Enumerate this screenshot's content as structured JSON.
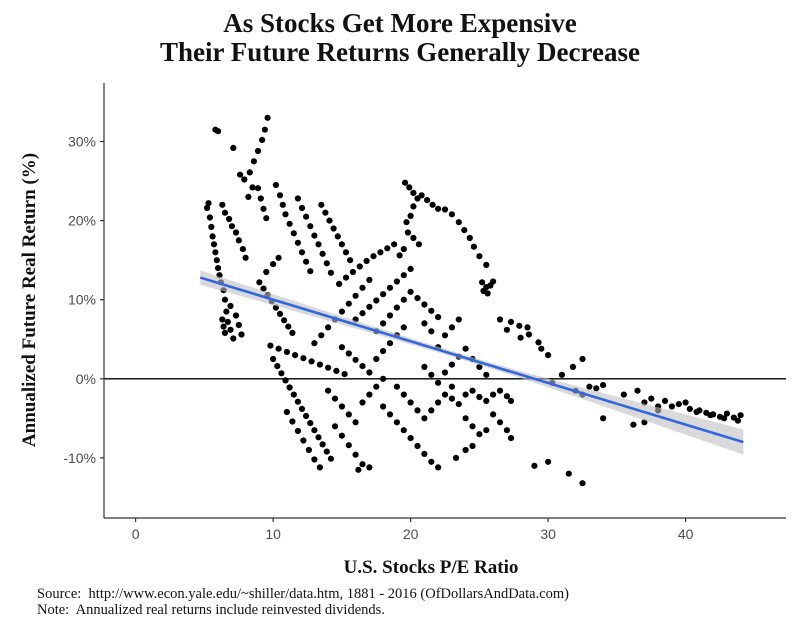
{
  "chart_data": {
    "type": "scatter",
    "title": [
      "As Stocks Get More Expensive",
      "Their Future Returns Generally Decrease"
    ],
    "xlabel": "U.S. Stocks P/E Ratio",
    "ylabel": "Annualized Future Real Return (%)",
    "xlim": [
      -2.3,
      47.3
    ],
    "ylim": [
      -17.6,
      37.4
    ],
    "x_ticks": [
      0,
      10,
      20,
      30,
      40
    ],
    "x_tick_labels": [
      "0",
      "10",
      "20",
      "30",
      "40"
    ],
    "y_ticks": [
      -10,
      0,
      10,
      20,
      30
    ],
    "y_tick_labels": [
      "-10%",
      "0%",
      "10%",
      "20%",
      "30%"
    ],
    "grid": false,
    "reference_line": {
      "y": 0,
      "color": "#000000"
    },
    "point_color": "#000000",
    "trend": {
      "type": "linear",
      "color": "#3366dd",
      "band_color": "#bfbfbf",
      "x": [
        4.7,
        44.2
      ],
      "y": [
        12.8,
        -8.0
      ],
      "band_halfwidth_at_ends": [
        0.9,
        1.6
      ],
      "band_halfwidth_at_center": 0.35
    },
    "points": [
      [
        5.2,
        21.6
      ],
      [
        5.4,
        20.4
      ],
      [
        5.5,
        19.2
      ],
      [
        5.6,
        18.0
      ],
      [
        5.7,
        17.0
      ],
      [
        5.3,
        22.2
      ],
      [
        5.8,
        16.0
      ],
      [
        5.9,
        15.0
      ],
      [
        6.0,
        14.0
      ],
      [
        6.1,
        13.1
      ],
      [
        6.2,
        12.2
      ],
      [
        6.4,
        11.2
      ],
      [
        6.5,
        10.0
      ],
      [
        5.8,
        31.5
      ],
      [
        6.0,
        31.3
      ],
      [
        6.3,
        22.0
      ],
      [
        6.5,
        21.0
      ],
      [
        6.8,
        20.2
      ],
      [
        7.0,
        19.3
      ],
      [
        7.3,
        18.5
      ],
      [
        7.5,
        17.5
      ],
      [
        7.8,
        16.4
      ],
      [
        8.0,
        15.3
      ],
      [
        8.3,
        26.1
      ],
      [
        8.6,
        27.5
      ],
      [
        8.9,
        28.8
      ],
      [
        9.2,
        30.2
      ],
      [
        9.4,
        31.5
      ],
      [
        9.6,
        33.0
      ],
      [
        8.9,
        24.1
      ],
      [
        9.1,
        22.8
      ],
      [
        9.3,
        21.5
      ],
      [
        9.5,
        20.3
      ],
      [
        8.5,
        24.2
      ],
      [
        8.2,
        23.0
      ],
      [
        7.1,
        29.2
      ],
      [
        7.6,
        25.8
      ],
      [
        7.9,
        25.2
      ],
      [
        6.3,
        7.5
      ],
      [
        6.4,
        6.6
      ],
      [
        6.5,
        5.8
      ],
      [
        6.7,
        7.2
      ],
      [
        6.9,
        6.2
      ],
      [
        7.1,
        5.1
      ],
      [
        6.6,
        8.5
      ],
      [
        6.9,
        9.2
      ],
      [
        7.3,
        8.0
      ],
      [
        7.5,
        6.8
      ],
      [
        7.7,
        5.6
      ],
      [
        9.0,
        12.2
      ],
      [
        9.3,
        11.4
      ],
      [
        9.6,
        10.6
      ],
      [
        9.9,
        9.8
      ],
      [
        10.2,
        9.0
      ],
      [
        10.5,
        8.2
      ],
      [
        10.8,
        7.4
      ],
      [
        11.1,
        6.6
      ],
      [
        11.4,
        5.8
      ],
      [
        9.5,
        13.5
      ],
      [
        10.0,
        14.5
      ],
      [
        10.4,
        15.3
      ],
      [
        10.2,
        24.5
      ],
      [
        10.5,
        23.2
      ],
      [
        10.7,
        22.0
      ],
      [
        10.9,
        20.8
      ],
      [
        11.2,
        19.6
      ],
      [
        11.5,
        18.4
      ],
      [
        11.8,
        17.2
      ],
      [
        12.1,
        16.0
      ],
      [
        12.4,
        14.8
      ],
      [
        12.7,
        13.6
      ],
      [
        11.8,
        22.8
      ],
      [
        12.1,
        21.6
      ],
      [
        12.4,
        20.5
      ],
      [
        12.7,
        19.3
      ],
      [
        13.0,
        18.1
      ],
      [
        13.3,
        17.0
      ],
      [
        13.6,
        15.8
      ],
      [
        13.9,
        14.6
      ],
      [
        14.2,
        13.4
      ],
      [
        13.5,
        22.0
      ],
      [
        13.8,
        21.0
      ],
      [
        14.1,
        20.0
      ],
      [
        14.4,
        19.0
      ],
      [
        14.7,
        18.0
      ],
      [
        15.0,
        17.0
      ],
      [
        15.3,
        16.0
      ],
      [
        15.6,
        15.0
      ],
      [
        10.0,
        2.5
      ],
      [
        10.3,
        1.6
      ],
      [
        10.6,
        0.7
      ],
      [
        10.9,
        -0.2
      ],
      [
        11.2,
        -1.1
      ],
      [
        11.5,
        -2.0
      ],
      [
        11.8,
        -2.9
      ],
      [
        12.1,
        -3.8
      ],
      [
        12.4,
        -4.7
      ],
      [
        12.7,
        -5.6
      ],
      [
        13.0,
        -6.5
      ],
      [
        13.3,
        -7.4
      ],
      [
        13.6,
        -8.3
      ],
      [
        13.9,
        -9.2
      ],
      [
        14.2,
        -10.1
      ],
      [
        9.8,
        4.2
      ],
      [
        10.4,
        3.8
      ],
      [
        11.0,
        3.4
      ],
      [
        11.6,
        3.0
      ],
      [
        12.2,
        2.6
      ],
      [
        12.8,
        2.2
      ],
      [
        13.4,
        1.8
      ],
      [
        14.0,
        1.4
      ],
      [
        14.6,
        1.0
      ],
      [
        15.2,
        0.6
      ],
      [
        11.0,
        -4.2
      ],
      [
        11.4,
        -5.4
      ],
      [
        11.8,
        -6.6
      ],
      [
        12.2,
        -7.8
      ],
      [
        12.6,
        -9.0
      ],
      [
        13.0,
        -10.2
      ],
      [
        13.4,
        -11.2
      ],
      [
        14.5,
        -6.0
      ],
      [
        15.0,
        -7.2
      ],
      [
        15.5,
        -8.4
      ],
      [
        16.0,
        -9.6
      ],
      [
        16.5,
        -10.8
      ],
      [
        17.0,
        -11.2
      ],
      [
        16.2,
        -11.5
      ],
      [
        13.0,
        4.5
      ],
      [
        13.5,
        5.5
      ],
      [
        14.0,
        6.5
      ],
      [
        14.5,
        7.5
      ],
      [
        15.0,
        8.5
      ],
      [
        15.5,
        9.5
      ],
      [
        16.0,
        10.5
      ],
      [
        16.5,
        11.5
      ],
      [
        17.0,
        12.5
      ],
      [
        14.0,
        -1.5
      ],
      [
        14.5,
        -2.5
      ],
      [
        15.0,
        -3.5
      ],
      [
        15.5,
        -4.5
      ],
      [
        16.0,
        -5.5
      ],
      [
        16.5,
        -3.0
      ],
      [
        17.0,
        -2.0
      ],
      [
        17.5,
        -1.0
      ],
      [
        18.0,
        0.0
      ],
      [
        14.8,
        12.0
      ],
      [
        15.3,
        12.8
      ],
      [
        15.8,
        13.5
      ],
      [
        16.3,
        14.2
      ],
      [
        16.8,
        14.9
      ],
      [
        17.3,
        15.5
      ],
      [
        17.8,
        16.0
      ],
      [
        18.3,
        16.5
      ],
      [
        15.0,
        4.0
      ],
      [
        15.5,
        3.2
      ],
      [
        16.0,
        2.4
      ],
      [
        16.5,
        1.6
      ],
      [
        17.0,
        0.8
      ],
      [
        17.5,
        2.5
      ],
      [
        18.0,
        3.5
      ],
      [
        18.5,
        4.5
      ],
      [
        19.0,
        5.5
      ],
      [
        19.5,
        6.5
      ],
      [
        16.0,
        7.5
      ],
      [
        16.5,
        8.3
      ],
      [
        17.0,
        9.1
      ],
      [
        17.5,
        9.9
      ],
      [
        18.0,
        10.7
      ],
      [
        18.5,
        11.5
      ],
      [
        19.0,
        12.3
      ],
      [
        19.5,
        13.1
      ],
      [
        20.0,
        13.9
      ],
      [
        17.5,
        6.0
      ],
      [
        18.0,
        7.0
      ],
      [
        18.5,
        8.0
      ],
      [
        19.0,
        9.0
      ],
      [
        19.5,
        10.0
      ],
      [
        20.0,
        11.0
      ],
      [
        20.5,
        10.2
      ],
      [
        21.0,
        9.4
      ],
      [
        21.5,
        8.6
      ],
      [
        22.0,
        7.8
      ],
      [
        18.0,
        -3.5
      ],
      [
        18.5,
        -4.5
      ],
      [
        19.0,
        -5.5
      ],
      [
        19.5,
        -6.5
      ],
      [
        20.0,
        -7.5
      ],
      [
        20.5,
        -8.5
      ],
      [
        21.0,
        -9.5
      ],
      [
        21.5,
        -10.5
      ],
      [
        22.0,
        -11.2
      ],
      [
        19.0,
        -1.0
      ],
      [
        19.5,
        -2.0
      ],
      [
        20.0,
        -3.0
      ],
      [
        20.5,
        -4.0
      ],
      [
        21.0,
        -5.0
      ],
      [
        21.5,
        -4.0
      ],
      [
        22.0,
        -3.0
      ],
      [
        22.5,
        -2.0
      ],
      [
        23.0,
        -1.0
      ],
      [
        19.8,
        18.5
      ],
      [
        20.2,
        17.8
      ],
      [
        20.6,
        17.0
      ],
      [
        19.5,
        16.4
      ],
      [
        19.2,
        15.6
      ],
      [
        18.8,
        17.0
      ],
      [
        19.6,
        24.8
      ],
      [
        19.9,
        24.2
      ],
      [
        20.2,
        23.5
      ],
      [
        20.5,
        22.8
      ],
      [
        20.8,
        23.2
      ],
      [
        21.2,
        22.6
      ],
      [
        21.6,
        22.0
      ],
      [
        20.2,
        21.8
      ],
      [
        20.0,
        20.6
      ],
      [
        19.7,
        19.8
      ],
      [
        22.0,
        21.5
      ],
      [
        22.5,
        21.4
      ],
      [
        23.0,
        20.8
      ],
      [
        23.5,
        19.8
      ],
      [
        23.9,
        18.8
      ],
      [
        24.3,
        17.8
      ],
      [
        24.6,
        16.7
      ],
      [
        25.0,
        15.5
      ],
      [
        25.5,
        14.4
      ],
      [
        25.2,
        12.2
      ],
      [
        25.5,
        11.6
      ],
      [
        25.8,
        11.8
      ],
      [
        26.0,
        12.3
      ],
      [
        25.6,
        10.8
      ],
      [
        25.3,
        11.1
      ],
      [
        21.0,
        1.5
      ],
      [
        21.5,
        0.5
      ],
      [
        22.0,
        -0.5
      ],
      [
        22.5,
        0.8
      ],
      [
        23.0,
        1.8
      ],
      [
        23.5,
        2.8
      ],
      [
        24.0,
        3.8
      ],
      [
        24.5,
        2.5
      ],
      [
        25.0,
        1.5
      ],
      [
        25.5,
        0.5
      ],
      [
        23.0,
        -2.5
      ],
      [
        23.5,
        -3.2
      ],
      [
        24.0,
        -2.0
      ],
      [
        24.5,
        -1.5
      ],
      [
        25.0,
        -2.3
      ],
      [
        25.5,
        -2.8
      ],
      [
        26.0,
        -2.0
      ],
      [
        26.5,
        -1.5
      ],
      [
        27.0,
        -2.2
      ],
      [
        27.3,
        -2.8
      ],
      [
        24.0,
        -5.0
      ],
      [
        24.5,
        -6.0
      ],
      [
        25.0,
        -7.0
      ],
      [
        25.5,
        -6.5
      ],
      [
        26.0,
        -4.5
      ],
      [
        26.5,
        -5.5
      ],
      [
        27.0,
        -6.5
      ],
      [
        27.3,
        -7.5
      ],
      [
        22.5,
        5.5
      ],
      [
        23.0,
        6.5
      ],
      [
        23.5,
        7.5
      ],
      [
        22.0,
        4.0
      ],
      [
        21.5,
        6.0
      ],
      [
        21.0,
        7.0
      ],
      [
        24.0,
        -9.0
      ],
      [
        24.5,
        -8.5
      ],
      [
        23.3,
        -10.0
      ],
      [
        26.5,
        7.5
      ],
      [
        27.3,
        7.2
      ],
      [
        27.9,
        6.7
      ],
      [
        28.6,
        5.6
      ],
      [
        29.3,
        4.6
      ],
      [
        29.5,
        3.8
      ],
      [
        30.0,
        3.0
      ],
      [
        27.0,
        6.2
      ],
      [
        28.0,
        5.2
      ],
      [
        28.5,
        6.5
      ],
      [
        30.3,
        -0.5
      ],
      [
        31.0,
        0.5
      ],
      [
        31.8,
        1.5
      ],
      [
        32.5,
        2.5
      ],
      [
        32.5,
        -2.0
      ],
      [
        32.0,
        -1.5
      ],
      [
        33.0,
        -1.0
      ],
      [
        33.5,
        -1.2
      ],
      [
        34.0,
        -0.8
      ],
      [
        29.0,
        -11.0
      ],
      [
        30.0,
        -10.5
      ],
      [
        31.5,
        -12.0
      ],
      [
        32.5,
        -13.2
      ],
      [
        34.0,
        -5.0
      ],
      [
        35.5,
        -2.0
      ],
      [
        36.5,
        -1.5
      ],
      [
        37.0,
        -3.0
      ],
      [
        37.5,
        -2.5
      ],
      [
        36.2,
        -5.8
      ],
      [
        37.0,
        -5.5
      ],
      [
        38.0,
        -3.5
      ],
      [
        38.5,
        -2.8
      ],
      [
        39.0,
        -3.5
      ],
      [
        40.0,
        -3.0
      ],
      [
        40.3,
        -3.8
      ],
      [
        41.0,
        -4.0
      ],
      [
        41.5,
        -4.3
      ],
      [
        42.0,
        -4.5
      ],
      [
        42.5,
        -4.8
      ],
      [
        43.0,
        -4.4
      ],
      [
        43.5,
        -4.9
      ],
      [
        44.0,
        -4.6
      ],
      [
        43.8,
        -5.3
      ],
      [
        42.8,
        -5.0
      ],
      [
        41.8,
        -4.6
      ],
      [
        40.8,
        -4.2
      ],
      [
        39.5,
        -3.2
      ],
      [
        38.0,
        -4.0
      ]
    ]
  },
  "notes": {
    "source": "Source:  http://www.econ.yale.edu/~shiller/data.htm, 1881 - 2016 (OfDollarsAndData.com)",
    "note": "Note:  Annualized real returns include reinvested dividends."
  }
}
